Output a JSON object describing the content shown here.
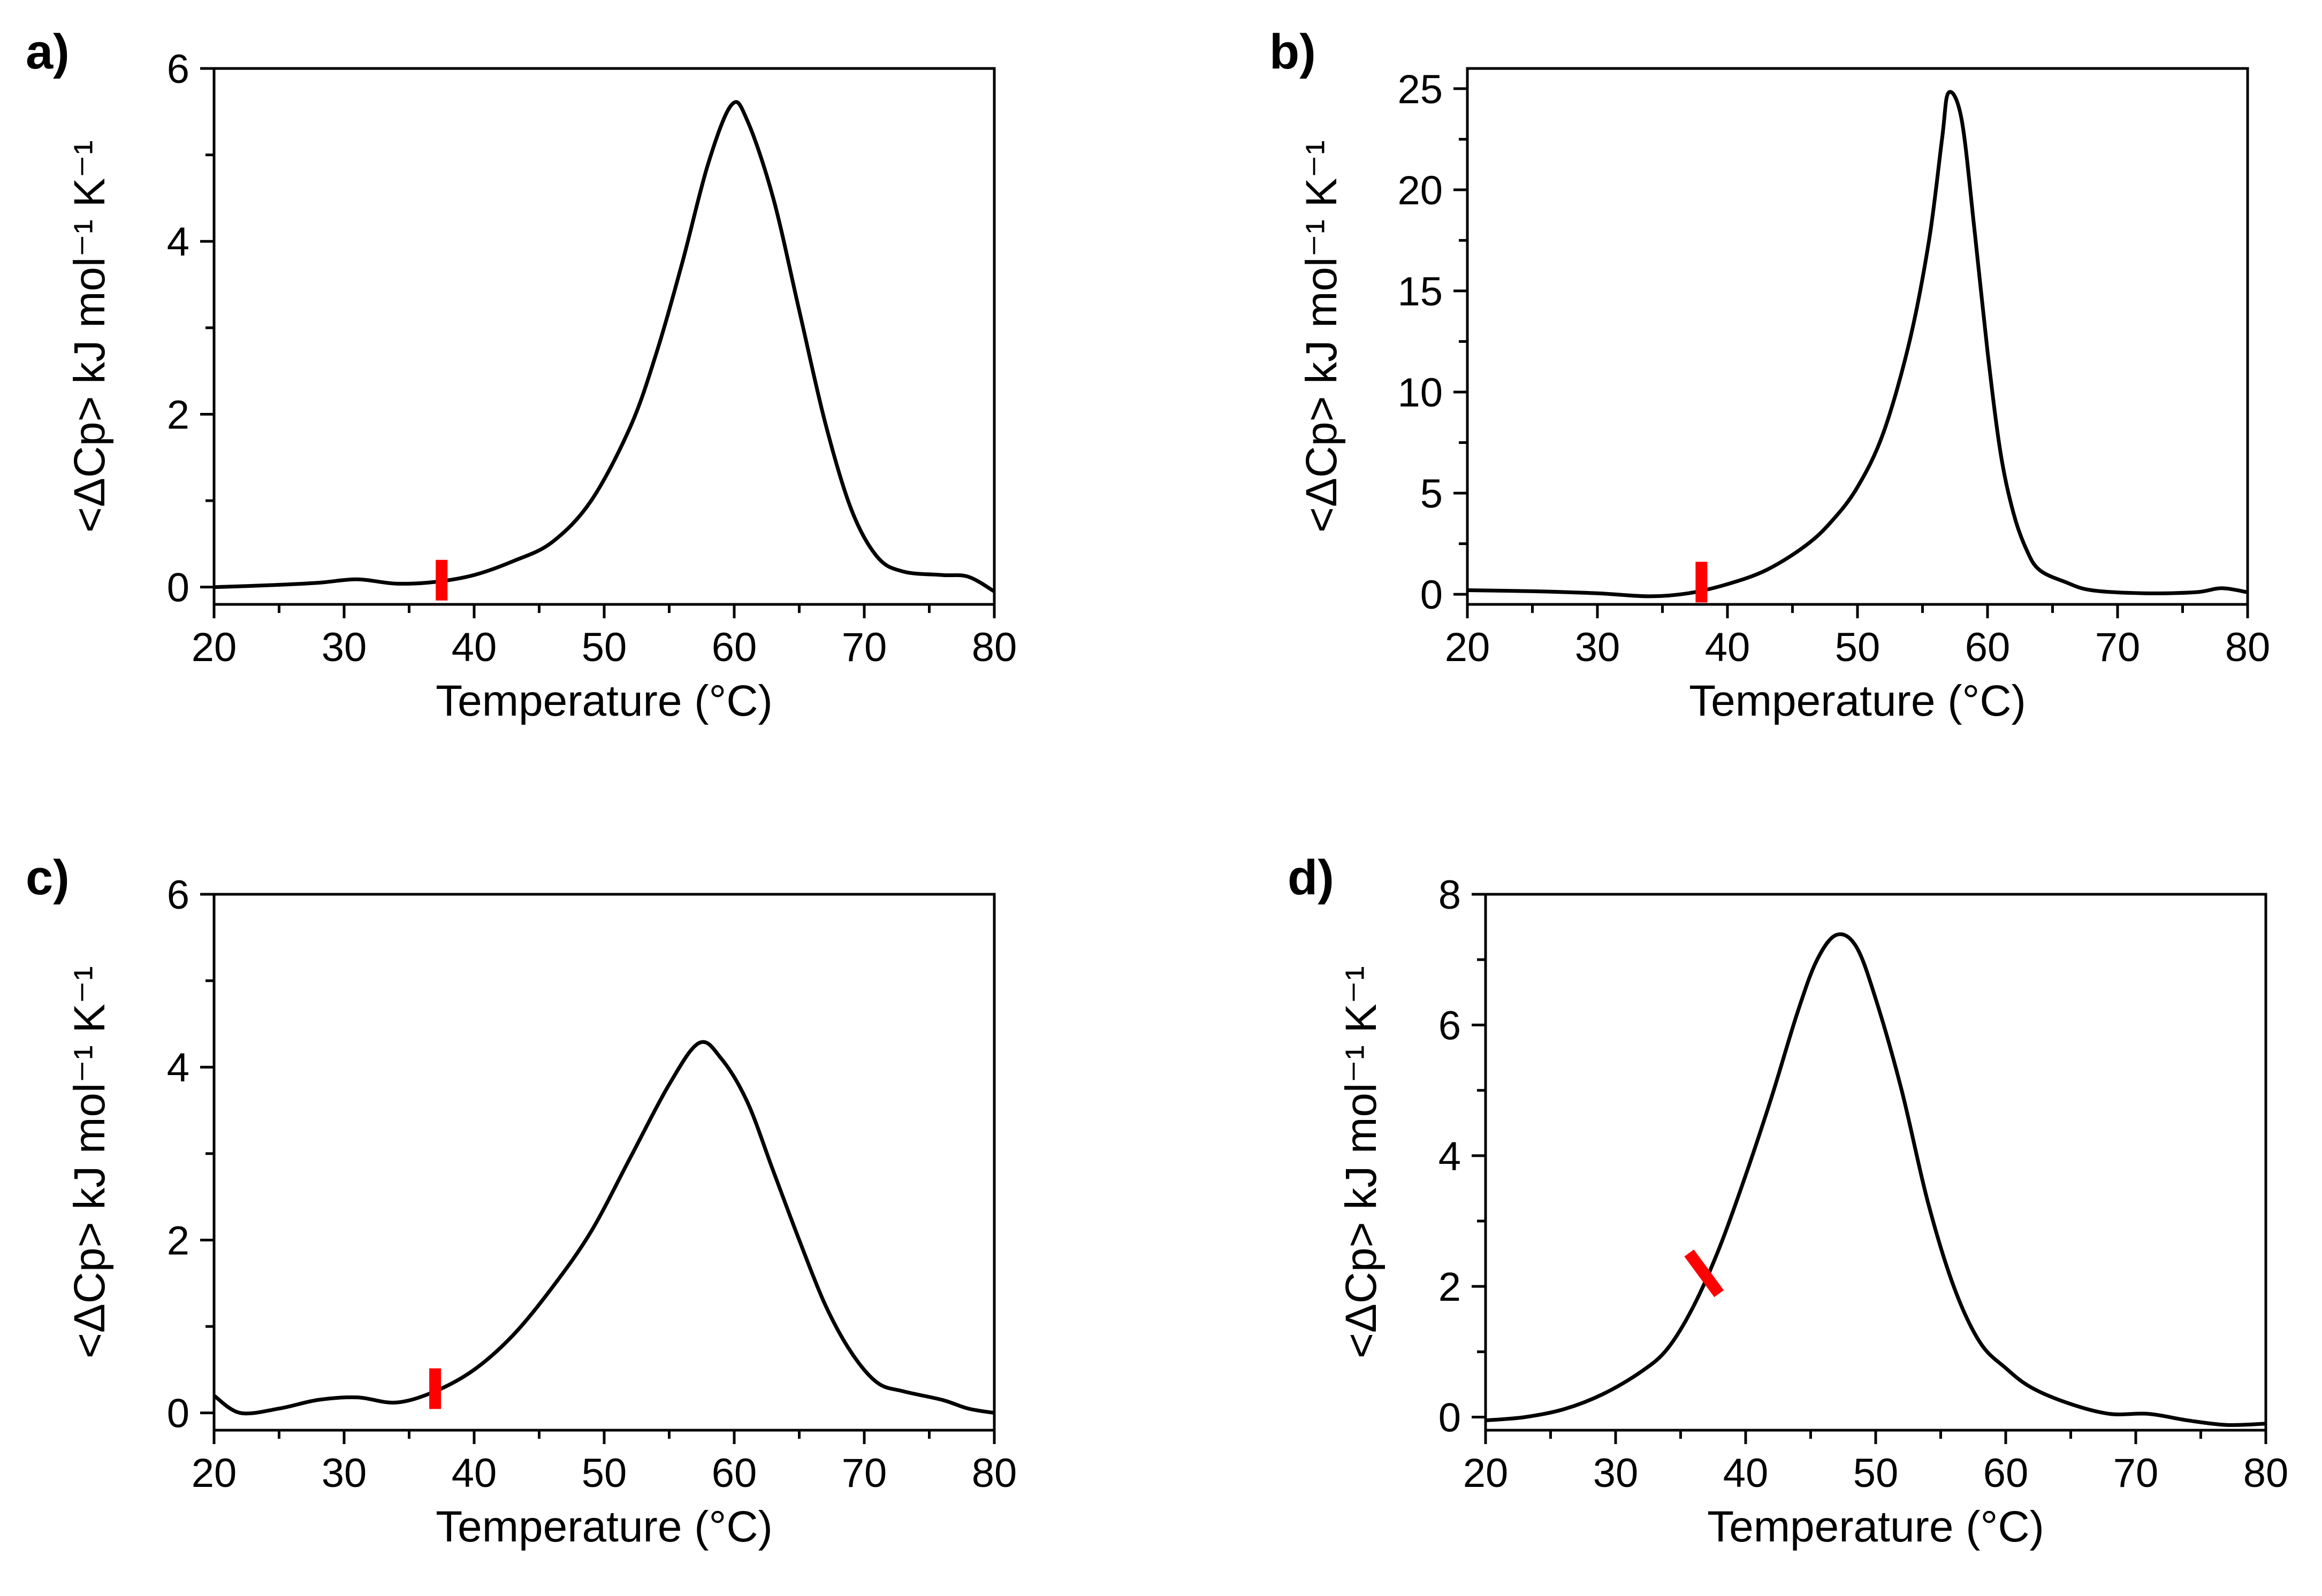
{
  "chart_data": [
    {
      "id": "a",
      "panel_label": "a)",
      "type": "line",
      "xlabel": "Temperature (°C)",
      "ylabel": "<ΔCp> kJ mol⁻¹ K⁻¹",
      "xlim": [
        20,
        80
      ],
      "ylim": [
        -0.2,
        6
      ],
      "xticks": [
        20,
        30,
        40,
        50,
        60,
        70,
        80
      ],
      "yticks": [
        0,
        2,
        4,
        6
      ],
      "x_minor_step": 5,
      "y_minor_step": 1,
      "series": [
        {
          "name": "ΔCp",
          "peak_x": 59.8,
          "peak_y": 5.58,
          "points": [
            [
              20,
              0.0
            ],
            [
              24,
              0.02
            ],
            [
              28,
              0.05
            ],
            [
              31,
              0.09
            ],
            [
              34,
              0.04
            ],
            [
              37,
              0.06
            ],
            [
              40,
              0.14
            ],
            [
              43,
              0.3
            ],
            [
              46,
              0.52
            ],
            [
              49,
              1.0
            ],
            [
              52,
              1.85
            ],
            [
              54,
              2.7
            ],
            [
              56,
              3.75
            ],
            [
              58,
              4.9
            ],
            [
              59.8,
              5.58
            ],
            [
              61,
              5.4
            ],
            [
              63,
              4.5
            ],
            [
              65,
              3.2
            ],
            [
              67,
              1.9
            ],
            [
              69,
              0.9
            ],
            [
              71,
              0.35
            ],
            [
              73,
              0.18
            ],
            [
              76,
              0.14
            ],
            [
              78,
              0.12
            ],
            [
              80,
              -0.05
            ]
          ]
        }
      ],
      "marker": {
        "x": 37.5,
        "y": 0.08,
        "orientation": "vertical",
        "color": "#ff0000"
      }
    },
    {
      "id": "b",
      "panel_label": "b)",
      "type": "line",
      "xlabel": "Temperature (°C)",
      "ylabel": "<ΔCp> kJ mol⁻¹ K⁻¹",
      "xlim": [
        20,
        80
      ],
      "ylim": [
        -0.5,
        26
      ],
      "xticks": [
        20,
        30,
        40,
        50,
        60,
        70,
        80
      ],
      "yticks": [
        0,
        5,
        10,
        15,
        20,
        25
      ],
      "x_minor_step": 5,
      "y_minor_step": 2.5,
      "series": [
        {
          "name": "ΔCp",
          "peak_x": 57,
          "peak_y": 24.8,
          "points": [
            [
              20,
              0.2
            ],
            [
              25,
              0.15
            ],
            [
              30,
              0.05
            ],
            [
              34,
              -0.1
            ],
            [
              37,
              0.05
            ],
            [
              40,
              0.5
            ],
            [
              43,
              1.2
            ],
            [
              46,
              2.4
            ],
            [
              48,
              3.6
            ],
            [
              50,
              5.3
            ],
            [
              52,
              8.0
            ],
            [
              54,
              12.5
            ],
            [
              55.5,
              17.5
            ],
            [
              56.5,
              22.5
            ],
            [
              57,
              24.8
            ],
            [
              58,
              23.5
            ],
            [
              59,
              18.0
            ],
            [
              60,
              12.0
            ],
            [
              61,
              7.0
            ],
            [
              62,
              4.0
            ],
            [
              63,
              2.2
            ],
            [
              64,
              1.2
            ],
            [
              66,
              0.6
            ],
            [
              68,
              0.2
            ],
            [
              72,
              0.05
            ],
            [
              76,
              0.1
            ],
            [
              78,
              0.3
            ],
            [
              80,
              0.1
            ]
          ]
        }
      ],
      "marker": {
        "x": 38,
        "y": 0.6,
        "orientation": "vertical",
        "color": "#ff0000"
      }
    },
    {
      "id": "c",
      "panel_label": "c)",
      "type": "line",
      "xlabel": "Temperature (°C)",
      "ylabel": "<ΔCp> kJ mol⁻¹ K⁻¹",
      "xlim": [
        20,
        80
      ],
      "ylim": [
        -0.2,
        6
      ],
      "xticks": [
        20,
        30,
        40,
        50,
        60,
        70,
        80
      ],
      "yticks": [
        0,
        2,
        4,
        6
      ],
      "x_minor_step": 5,
      "y_minor_step": 1,
      "series": [
        {
          "name": "ΔCp",
          "peak_x": 57.3,
          "peak_y": 4.28,
          "points": [
            [
              20,
              0.2
            ],
            [
              22,
              0.0
            ],
            [
              25,
              0.05
            ],
            [
              28,
              0.15
            ],
            [
              31,
              0.18
            ],
            [
              34,
              0.12
            ],
            [
              37,
              0.25
            ],
            [
              40,
              0.5
            ],
            [
              43,
              0.9
            ],
            [
              46,
              1.45
            ],
            [
              49,
              2.1
            ],
            [
              52,
              2.95
            ],
            [
              55,
              3.8
            ],
            [
              57.3,
              4.28
            ],
            [
              59,
              4.1
            ],
            [
              61,
              3.6
            ],
            [
              63,
              2.8
            ],
            [
              65,
              2.0
            ],
            [
              67,
              1.25
            ],
            [
              69,
              0.7
            ],
            [
              71,
              0.35
            ],
            [
              73,
              0.25
            ],
            [
              76,
              0.15
            ],
            [
              78,
              0.05
            ],
            [
              80,
              0.0
            ]
          ]
        }
      ],
      "marker": {
        "x": 37,
        "y": 0.28,
        "orientation": "vertical",
        "color": "#ff0000"
      }
    },
    {
      "id": "d",
      "panel_label": "d)",
      "type": "line",
      "xlabel": "Temperature (°C)",
      "ylabel": "<ΔCp> kJ mol⁻¹ K⁻¹",
      "xlim": [
        20,
        80
      ],
      "ylim": [
        -0.2,
        8
      ],
      "xticks": [
        20,
        30,
        40,
        50,
        60,
        70,
        80
      ],
      "yticks": [
        0,
        2,
        4,
        6,
        8
      ],
      "x_minor_step": 5,
      "y_minor_step": 1,
      "series": [
        {
          "name": "ΔCp",
          "peak_x": 47,
          "peak_y": 7.38,
          "points": [
            [
              20,
              -0.05
            ],
            [
              23,
              0.0
            ],
            [
              26,
              0.12
            ],
            [
              29,
              0.35
            ],
            [
              32,
              0.7
            ],
            [
              34,
              1.05
            ],
            [
              36,
              1.7
            ],
            [
              38,
              2.6
            ],
            [
              40,
              3.7
            ],
            [
              42,
              4.9
            ],
            [
              44,
              6.2
            ],
            [
              45.5,
              7.0
            ],
            [
              47,
              7.38
            ],
            [
              48.5,
              7.2
            ],
            [
              50,
              6.4
            ],
            [
              52,
              5.0
            ],
            [
              54,
              3.3
            ],
            [
              56,
              2.0
            ],
            [
              58,
              1.15
            ],
            [
              60,
              0.75
            ],
            [
              62,
              0.45
            ],
            [
              65,
              0.2
            ],
            [
              68,
              0.05
            ],
            [
              71,
              0.05
            ],
            [
              74,
              -0.05
            ],
            [
              77,
              -0.12
            ],
            [
              80,
              -0.1
            ]
          ]
        }
      ],
      "marker": {
        "x": 36.8,
        "y": 2.2,
        "orientation": "tilted",
        "color": "#ff0000"
      }
    }
  ]
}
